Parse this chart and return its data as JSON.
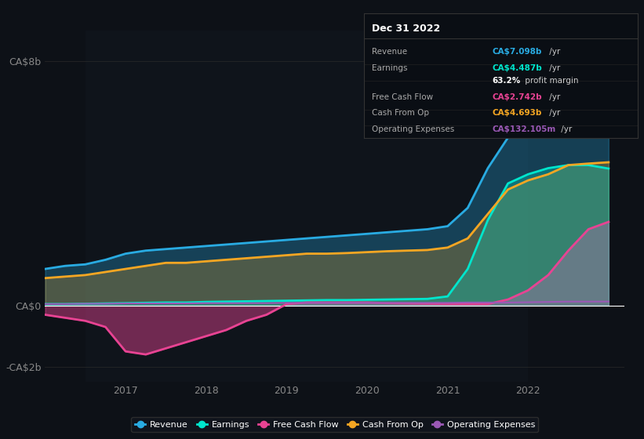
{
  "background_color": "#0d1117",
  "plot_bg_color": "#0d1117",
  "ylabel_top": "CA$8b",
  "ylabel_zero": "CA$0",
  "ylabel_bottom": "-CA$2b",
  "ylim": [
    -2.5,
    9.0
  ],
  "xlim": [
    2016.0,
    2023.2
  ],
  "xticks": [
    2017,
    2018,
    2019,
    2020,
    2021,
    2022
  ],
  "colors": {
    "revenue": "#29abe2",
    "earnings": "#00e5cc",
    "free_cash_flow": "#e84393",
    "cash_from_op": "#f5a623",
    "operating_expenses": "#9b59b6",
    "zero_line": "#ffffff"
  },
  "legend": [
    {
      "label": "Revenue",
      "color": "#29abe2"
    },
    {
      "label": "Earnings",
      "color": "#00e5cc"
    },
    {
      "label": "Free Cash Flow",
      "color": "#e84393"
    },
    {
      "label": "Cash From Op",
      "color": "#f5a623"
    },
    {
      "label": "Operating Expenses",
      "color": "#9b59b6"
    }
  ],
  "info_box": {
    "title": "Dec 31 2022",
    "rows": [
      {
        "label": "Revenue",
        "value": "CA$7.098b",
        "color": "#29abe2",
        "suffix": " /yr"
      },
      {
        "label": "Earnings",
        "value": "CA$4.487b",
        "color": "#00e5cc",
        "suffix": " /yr"
      },
      {
        "label": "",
        "value": "63.2%",
        "color": "#ffffff",
        "suffix": " profit margin"
      },
      {
        "label": "Free Cash Flow",
        "value": "CA$2.742b",
        "color": "#e84393",
        "suffix": " /yr"
      },
      {
        "label": "Cash From Op",
        "value": "CA$4.693b",
        "color": "#f5a623",
        "suffix": " /yr"
      },
      {
        "label": "Operating Expenses",
        "value": "CA$132.105m",
        "color": "#9b59b6",
        "suffix": " /yr"
      }
    ]
  },
  "x_revenue": [
    2016.0,
    2016.25,
    2016.5,
    2016.75,
    2017.0,
    2017.25,
    2017.5,
    2017.75,
    2018.0,
    2018.25,
    2018.5,
    2018.75,
    2019.0,
    2019.25,
    2019.5,
    2019.75,
    2020.0,
    2020.25,
    2020.5,
    2020.75,
    2021.0,
    2021.25,
    2021.5,
    2021.75,
    2022.0,
    2022.25,
    2022.5,
    2022.75,
    2023.0
  ],
  "y_revenue": [
    1.2,
    1.3,
    1.35,
    1.5,
    1.7,
    1.8,
    1.85,
    1.9,
    1.95,
    2.0,
    2.05,
    2.1,
    2.15,
    2.2,
    2.25,
    2.3,
    2.35,
    2.4,
    2.45,
    2.5,
    2.6,
    3.2,
    4.5,
    5.5,
    6.0,
    6.5,
    7.0,
    7.1,
    7.098
  ],
  "x_earnings": [
    2016.0,
    2016.25,
    2016.5,
    2016.75,
    2017.0,
    2017.25,
    2017.5,
    2017.75,
    2018.0,
    2018.25,
    2018.5,
    2018.75,
    2019.0,
    2019.25,
    2019.5,
    2019.75,
    2020.0,
    2020.25,
    2020.5,
    2020.75,
    2021.0,
    2021.25,
    2021.5,
    2021.75,
    2022.0,
    2022.25,
    2022.5,
    2022.75,
    2023.0
  ],
  "y_earnings": [
    0.05,
    0.05,
    0.06,
    0.07,
    0.08,
    0.09,
    0.1,
    0.1,
    0.12,
    0.13,
    0.14,
    0.15,
    0.16,
    0.17,
    0.18,
    0.18,
    0.19,
    0.2,
    0.21,
    0.22,
    0.3,
    1.2,
    2.8,
    4.0,
    4.3,
    4.5,
    4.6,
    4.6,
    4.487
  ],
  "x_fcf": [
    2016.0,
    2016.25,
    2016.5,
    2016.75,
    2017.0,
    2017.25,
    2017.5,
    2017.75,
    2018.0,
    2018.25,
    2018.5,
    2018.75,
    2019.0,
    2019.25,
    2019.5,
    2019.75,
    2020.0,
    2020.25,
    2020.5,
    2020.75,
    2021.0,
    2021.25,
    2021.5,
    2021.75,
    2022.0,
    2022.25,
    2022.5,
    2022.75,
    2023.0
  ],
  "y_fcf": [
    -0.3,
    -0.4,
    -0.5,
    -0.7,
    -1.5,
    -1.6,
    -1.4,
    -1.2,
    -1.0,
    -0.8,
    -0.5,
    -0.3,
    0.05,
    0.1,
    0.1,
    0.1,
    0.1,
    0.08,
    0.07,
    0.06,
    0.05,
    0.05,
    0.05,
    0.2,
    0.5,
    1.0,
    1.8,
    2.5,
    2.742
  ],
  "x_cashop": [
    2016.0,
    2016.25,
    2016.5,
    2016.75,
    2017.0,
    2017.25,
    2017.5,
    2017.75,
    2018.0,
    2018.25,
    2018.5,
    2018.75,
    2019.0,
    2019.25,
    2019.5,
    2019.75,
    2020.0,
    2020.25,
    2020.5,
    2020.75,
    2021.0,
    2021.25,
    2021.5,
    2021.75,
    2022.0,
    2022.25,
    2022.5,
    2022.75,
    2023.0
  ],
  "y_cashop": [
    0.9,
    0.95,
    1.0,
    1.1,
    1.2,
    1.3,
    1.4,
    1.4,
    1.45,
    1.5,
    1.55,
    1.6,
    1.65,
    1.7,
    1.7,
    1.72,
    1.75,
    1.78,
    1.8,
    1.82,
    1.9,
    2.2,
    3.0,
    3.8,
    4.1,
    4.3,
    4.6,
    4.65,
    4.693
  ],
  "x_opex": [
    2016.0,
    2016.25,
    2016.5,
    2016.75,
    2017.0,
    2017.25,
    2017.5,
    2017.75,
    2018.0,
    2018.25,
    2018.5,
    2018.75,
    2019.0,
    2019.25,
    2019.5,
    2019.75,
    2020.0,
    2020.25,
    2020.5,
    2020.75,
    2021.0,
    2021.25,
    2021.5,
    2021.75,
    2022.0,
    2022.25,
    2022.5,
    2022.75,
    2023.0
  ],
  "y_opex": [
    0.05,
    0.05,
    0.06,
    0.06,
    0.07,
    0.07,
    0.07,
    0.07,
    0.08,
    0.08,
    0.08,
    0.08,
    0.09,
    0.09,
    0.09,
    0.09,
    0.09,
    0.09,
    0.09,
    0.09,
    0.09,
    0.1,
    0.1,
    0.1,
    0.11,
    0.12,
    0.13,
    0.13,
    0.132
  ]
}
